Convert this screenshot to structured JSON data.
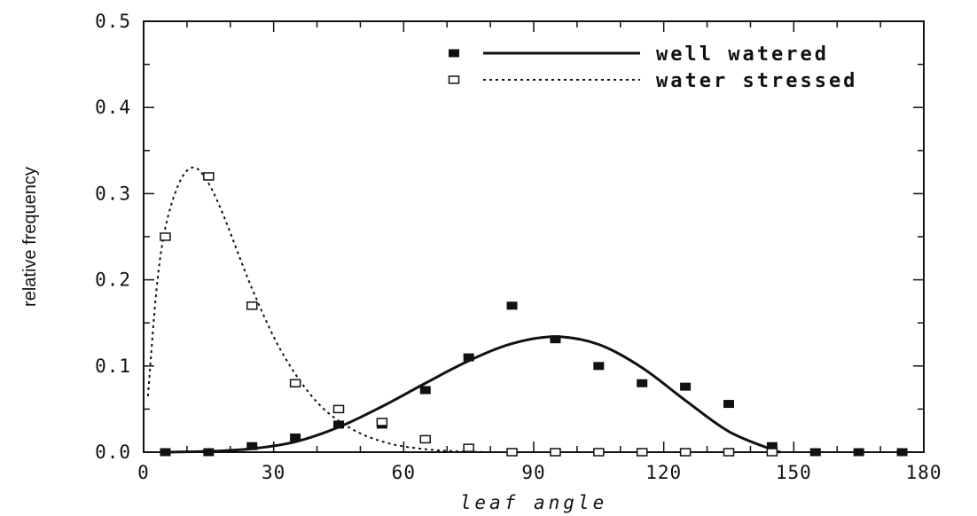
{
  "chart_data": {
    "type": "line",
    "xlabel": "leaf angle",
    "ylabel": "relative frequency",
    "xlim": [
      0,
      180
    ],
    "ylim": [
      0,
      0.5
    ],
    "x_ticks": [
      "0",
      "30",
      "60",
      "90",
      "120",
      "150",
      "180"
    ],
    "y_ticks": [
      "0.0",
      "0.1",
      "0.2",
      "0.3",
      "0.4",
      "0.5"
    ],
    "grid": false,
    "legend_position": "top-right",
    "series": [
      {
        "name": "well watered",
        "marker": "filled-square",
        "line_style": "solid",
        "points": [
          [
            5,
            0.0
          ],
          [
            15,
            0.0
          ],
          [
            25,
            0.007
          ],
          [
            35,
            0.017
          ],
          [
            45,
            0.032
          ],
          [
            55,
            0.032
          ],
          [
            65,
            0.072
          ],
          [
            75,
            0.11
          ],
          [
            85,
            0.17
          ],
          [
            95,
            0.131
          ],
          [
            105,
            0.1
          ],
          [
            115,
            0.08
          ],
          [
            125,
            0.076
          ],
          [
            135,
            0.056
          ],
          [
            145,
            0.007
          ],
          [
            155,
            0.0
          ],
          [
            165,
            0.0
          ],
          [
            175,
            0.0
          ]
        ],
        "curve": [
          [
            5,
            0.0
          ],
          [
            15,
            0.001
          ],
          [
            25,
            0.004
          ],
          [
            35,
            0.012
          ],
          [
            45,
            0.029
          ],
          [
            55,
            0.053
          ],
          [
            65,
            0.08
          ],
          [
            75,
            0.106
          ],
          [
            85,
            0.126
          ],
          [
            95,
            0.134
          ],
          [
            105,
            0.125
          ],
          [
            115,
            0.098
          ],
          [
            125,
            0.06
          ],
          [
            135,
            0.024
          ],
          [
            145,
            0.003
          ],
          [
            147,
            0.0
          ]
        ]
      },
      {
        "name": "water stressed",
        "marker": "open-square",
        "line_style": "dotted",
        "points": [
          [
            5,
            0.25
          ],
          [
            15,
            0.32
          ],
          [
            25,
            0.17
          ],
          [
            35,
            0.08
          ],
          [
            45,
            0.05
          ],
          [
            55,
            0.035
          ],
          [
            65,
            0.015
          ],
          [
            75,
            0.005
          ],
          [
            85,
            0.0
          ],
          [
            95,
            0.0
          ],
          [
            105,
            0.0
          ],
          [
            115,
            0.0
          ],
          [
            125,
            0.0
          ],
          [
            135,
            0.0
          ],
          [
            145,
            0.0
          ]
        ],
        "curve": [
          [
            1,
            0.065
          ],
          [
            3,
            0.19
          ],
          [
            5,
            0.26
          ],
          [
            8,
            0.31
          ],
          [
            11,
            0.33
          ],
          [
            14,
            0.32
          ],
          [
            18,
            0.28
          ],
          [
            25,
            0.19
          ],
          [
            32,
            0.115
          ],
          [
            40,
            0.058
          ],
          [
            48,
            0.027
          ],
          [
            56,
            0.011
          ],
          [
            64,
            0.004
          ],
          [
            72,
            0.001
          ],
          [
            80,
            0.0
          ]
        ]
      }
    ]
  }
}
